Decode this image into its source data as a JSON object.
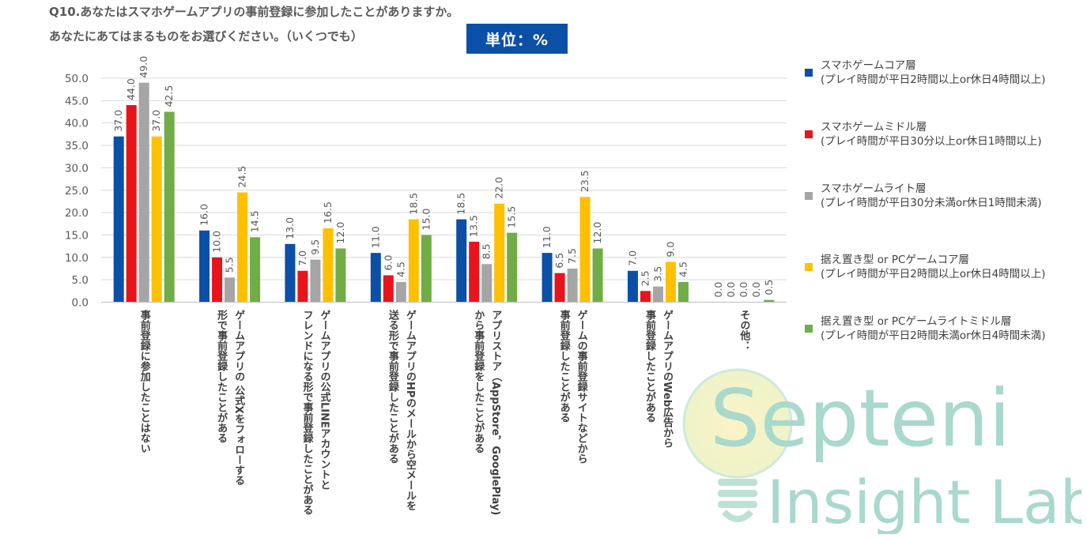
{
  "header": {
    "question_line1": "Q10.あなたはスマホゲームアプリの事前登録に参加したことがありますか。",
    "question_line2": "あなたにあてはまるものをお選びください。（いくつでも）",
    "unit_label": "単位：%"
  },
  "watermark": {
    "text_line1": "Septeni",
    "text_line2": "Insight Lab."
  },
  "chart_data": {
    "type": "bar",
    "ylim": [
      0,
      50
    ],
    "yticks": [
      "0.0",
      "5.0",
      "10.0",
      "15.0",
      "20.0",
      "25.0",
      "30.0",
      "35.0",
      "40.0",
      "45.0",
      "50.0"
    ],
    "grid": true,
    "legend_position": "right",
    "categories": [
      [
        "事前登録に参加したことはない"
      ],
      [
        "ゲームアプリの 公式Xをフォローする",
        "形で事前登録したことがある"
      ],
      [
        "ゲームアプリの公式LINEアカウントと",
        "フレンドになる形で事前登録したことがある"
      ],
      [
        "ゲームアプリのHPのメールから空メールを",
        "送る形で事前登録したことがある"
      ],
      [
        "アプリストア（AppStore，GooglePlay)",
        "から事前登録をしたことがある"
      ],
      [
        "ゲームの事前登録サイトなどから",
        "事前登録したことがある"
      ],
      [
        "ゲームアプリのWeb広告から",
        "事前登録したことがある"
      ],
      [
        "その他："
      ]
    ],
    "series": [
      {
        "name": "スマホゲームコア層",
        "note": "(プレイ時間が平日2時間以上or休日4時間以上)",
        "color": "#0b4fa7",
        "values": [
          37.0,
          16.0,
          13.0,
          11.0,
          18.5,
          11.0,
          7.0,
          0.0
        ],
        "labels": [
          "37.0",
          "16.0",
          "13.0",
          "11.0",
          "18.5",
          "11.0",
          "7.0",
          "0.0"
        ]
      },
      {
        "name": "スマホゲームミドル層",
        "note": "(プレイ時間が平日30分以上or休日1時間以上)",
        "color": "#e8141c",
        "values": [
          44.0,
          10.0,
          7.0,
          6.0,
          13.5,
          6.5,
          2.5,
          0.0
        ],
        "labels": [
          "44.0",
          "10.0",
          "7.0",
          "6.0",
          "13.5",
          "6.5",
          "2.5",
          "0.0"
        ]
      },
      {
        "name": "スマホゲームライト層",
        "note": "(プレイ時間が平日30分未満or休日1時間未満)",
        "color": "#a5a5a5",
        "values": [
          49.0,
          5.5,
          9.5,
          4.5,
          8.5,
          7.5,
          3.5,
          0.0
        ],
        "labels": [
          "49.0",
          "5.5",
          "9.5",
          "4.5",
          "8.5",
          "7.5",
          "3.5",
          "0.0"
        ]
      },
      {
        "name": "据え置き型 or PCゲームコア層",
        "note": "(プレイ時間が平日2時間以上or休日4時間以上)",
        "color": "#ffc000",
        "values": [
          37.0,
          24.5,
          16.5,
          18.5,
          22.0,
          23.5,
          9.0,
          0.0
        ],
        "labels": [
          "37.0",
          "24.5",
          "16.5",
          "18.5",
          "22.0",
          "23.5",
          "9.0",
          "0.0"
        ]
      },
      {
        "name": "据え置き型 or PCゲームライトミドル層",
        "note": "(プレイ時間が平日2時間未満or休日4時間未満)",
        "color": "#70ad47",
        "values": [
          42.5,
          14.5,
          12.0,
          15.0,
          15.5,
          12.0,
          4.5,
          0.5
        ],
        "labels": [
          "42.5",
          "14.5",
          "12.0",
          "15.0",
          "15.5",
          "12.0",
          "4.5",
          "0.5"
        ]
      }
    ]
  }
}
